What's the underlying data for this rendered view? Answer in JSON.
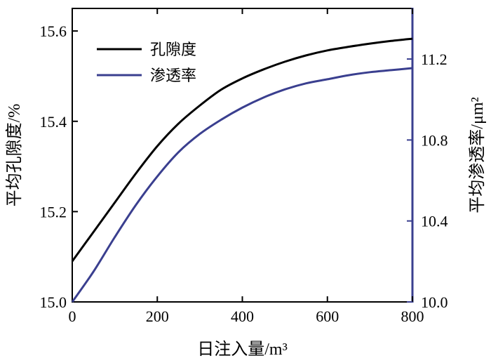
{
  "chart_data": {
    "type": "line",
    "xlabel": "日注入量/m³",
    "ylabel_left": "平均孔隙度/%",
    "ylabel_right": "平均渗透率/μm²",
    "xlim": [
      0,
      800
    ],
    "ylim_left": [
      15.0,
      15.65
    ],
    "ylim_right": [
      10.0,
      11.45
    ],
    "x_ticks": [
      0,
      200,
      400,
      600,
      800
    ],
    "y_left_ticks": [
      15.0,
      15.2,
      15.4,
      15.6
    ],
    "y_right_ticks": [
      10.0,
      10.4,
      10.8,
      11.2
    ],
    "y_left_tick_labels": [
      "15.0",
      "15.2",
      "15.4",
      "15.6"
    ],
    "y_right_tick_labels": [
      "10.0",
      "10.4",
      "10.8",
      "11.2"
    ],
    "x_tick_labels": [
      "0",
      "200",
      "400",
      "600",
      "800"
    ],
    "grid": false,
    "legend": "top-left",
    "series": [
      {
        "name": "孔隙度",
        "axis": "left",
        "color": "#000000",
        "x": [
          0,
          50,
          100,
          150,
          200,
          250,
          300,
          350,
          400,
          450,
          500,
          550,
          600,
          650,
          700,
          750,
          800
        ],
        "values": [
          15.09,
          15.155,
          15.22,
          15.285,
          15.345,
          15.395,
          15.435,
          15.47,
          15.495,
          15.515,
          15.532,
          15.546,
          15.557,
          15.565,
          15.572,
          15.578,
          15.583
        ]
      },
      {
        "name": "渗透率",
        "axis": "right",
        "color": "#3a3f8f",
        "x": [
          0,
          50,
          100,
          150,
          200,
          250,
          300,
          350,
          400,
          450,
          500,
          550,
          600,
          650,
          700,
          750,
          800
        ],
        "values": [
          10.0,
          10.15,
          10.32,
          10.48,
          10.62,
          10.74,
          10.83,
          10.9,
          10.96,
          11.01,
          11.05,
          11.08,
          11.1,
          11.12,
          11.135,
          11.145,
          11.155
        ]
      }
    ]
  }
}
